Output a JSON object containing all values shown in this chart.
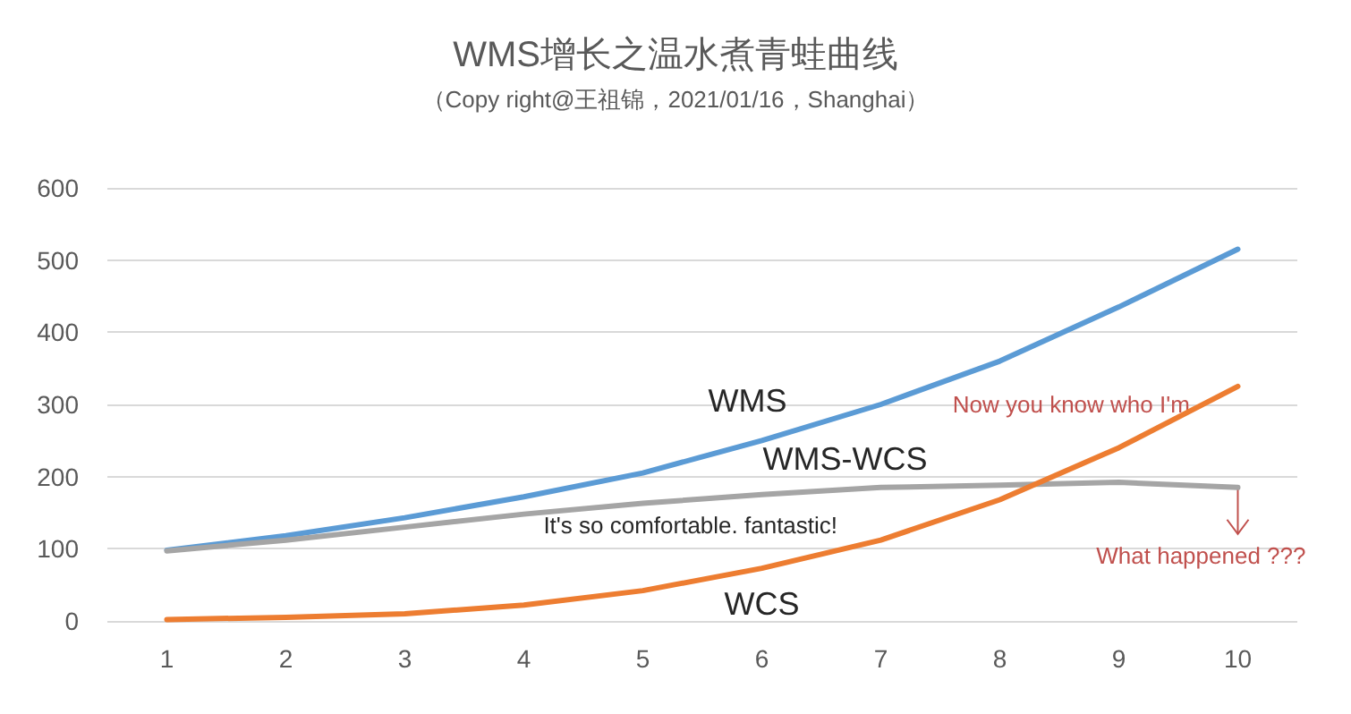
{
  "chart_data": {
    "type": "line",
    "title": "WMS增长之温水煮青蛙曲线",
    "subtitle": "（Copy right@王祖锦，2021/01/16，Shanghai）",
    "x": [
      1,
      2,
      3,
      4,
      5,
      6,
      7,
      8,
      9,
      10
    ],
    "series": [
      {
        "name": "WMS",
        "color": "#5b9bd5",
        "values": [
          98,
          118,
          143,
          172,
          205,
          250,
          300,
          360,
          435,
          515
        ]
      },
      {
        "name": "WMS-WCS",
        "color": "#a5a5a5",
        "values": [
          97,
          112,
          130,
          148,
          163,
          175,
          185,
          188,
          192,
          185
        ]
      },
      {
        "name": "WCS",
        "color": "#ed7d31",
        "values": [
          2,
          5,
          10,
          22,
          42,
          73,
          112,
          168,
          240,
          325
        ]
      }
    ],
    "annotations": [
      "It's so comfortable. fantastic!",
      "Now you know who I'm",
      {
        "text": "What happened ???",
        "x": 10,
        "y": 185
      }
    ],
    "xlim": [
      0.5,
      10.5
    ],
    "xticks": [
      1,
      2,
      3,
      4,
      5,
      6,
      7,
      8,
      9,
      10
    ],
    "ylim": [
      0,
      600
    ],
    "yticks": [
      0,
      100,
      200,
      300,
      400,
      500,
      600
    ],
    "grid": "y",
    "legend": false,
    "marker": "none",
    "line_style": "solid"
  }
}
